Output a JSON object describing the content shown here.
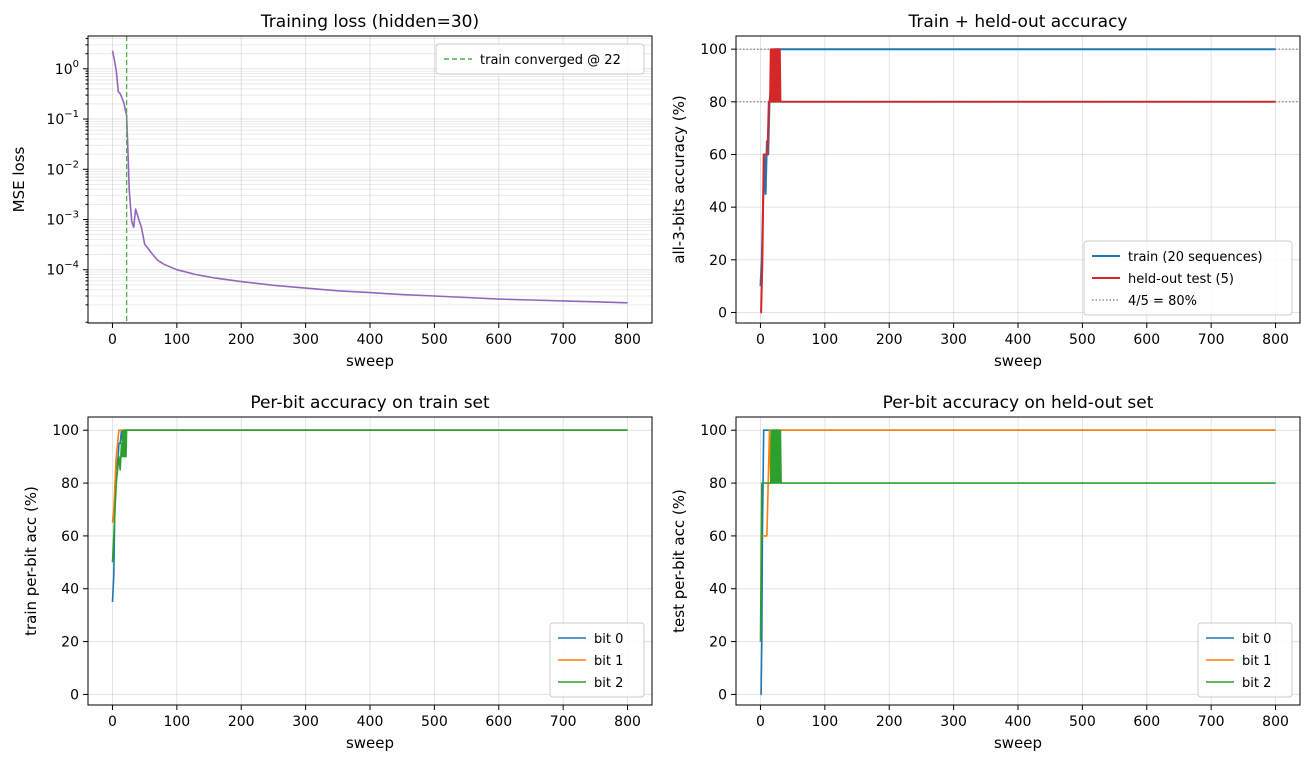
{
  "chart_data": [
    {
      "id": "loss",
      "type": "line",
      "title": "Training loss (hidden=30)",
      "xlabel": "sweep",
      "ylabel": "MSE loss",
      "yscale": "log",
      "xlim": [
        -38,
        838
      ],
      "ylim": [
        8.7e-06,
        4.5
      ],
      "xticks": [
        "0",
        "100",
        "200",
        "300",
        "400",
        "500",
        "600",
        "700",
        "800"
      ],
      "yticks": [
        "10^0",
        "10^-1",
        "10^-2",
        "10^-3",
        "10^-4"
      ],
      "grid": true,
      "legend_position": "top-right",
      "series": [
        {
          "name": "",
          "color": "#9467bd",
          "x": [
            0,
            3,
            6,
            9,
            12,
            15,
            18,
            20,
            22,
            24,
            26,
            28,
            30,
            33,
            36,
            39,
            42,
            45,
            50,
            55,
            60,
            70,
            80,
            100,
            130,
            160,
            200,
            250,
            300,
            350,
            400,
            450,
            500,
            550,
            600,
            650,
            700,
            750,
            800
          ],
          "y": [
            2.3,
            1.5,
            0.9,
            0.35,
            0.32,
            0.26,
            0.2,
            0.15,
            0.12,
            0.025,
            0.004,
            0.0018,
            0.0009,
            0.0007,
            0.0016,
            0.0012,
            0.0009,
            0.0007,
            0.00032,
            0.00027,
            0.00022,
            0.000155,
            0.000128,
            0.0001,
            8e-05,
            6.8e-05,
            5.8e-05,
            4.9e-05,
            4.3e-05,
            3.8e-05,
            3.5e-05,
            3.2e-05,
            3e-05,
            2.8e-05,
            2.6e-05,
            2.5e-05,
            2.4e-05,
            2.3e-05,
            2.2e-05
          ]
        },
        {
          "name": "train converged @ 22",
          "color": "#4daf4a",
          "style": "dashed-vertical",
          "x_value": 22
        }
      ]
    },
    {
      "id": "acc",
      "type": "line",
      "title": "Train + held-out accuracy",
      "xlabel": "sweep",
      "ylabel": "all-3-bits accuracy (%)",
      "xlim": [
        -38,
        838
      ],
      "ylim": [
        -4,
        105
      ],
      "xticks": [
        "0",
        "100",
        "200",
        "300",
        "400",
        "500",
        "600",
        "700",
        "800"
      ],
      "yticks": [
        "0",
        "20",
        "40",
        "60",
        "80",
        "100"
      ],
      "grid": true,
      "legend_position": "lower-right",
      "series": [
        {
          "name": "train (20 sequences)",
          "color": "#1f77b4",
          "x": [
            0,
            2,
            4,
            6,
            8,
            10,
            12,
            14,
            16,
            18,
            20,
            22,
            800
          ],
          "y": [
            10,
            20,
            40,
            60,
            45,
            65,
            60,
            80,
            85,
            90,
            95,
            100,
            100
          ]
        },
        {
          "name": "held-out test (5)",
          "color": "#d62728",
          "x": [
            0,
            1,
            3,
            5,
            7,
            9,
            11,
            13,
            15,
            16,
            17,
            18,
            19,
            20,
            21,
            22,
            23,
            24,
            25,
            26,
            27,
            28,
            29,
            30,
            31,
            32,
            800
          ],
          "y": [
            0,
            0,
            20,
            60,
            60,
            60,
            60,
            80,
            80,
            100,
            80,
            100,
            80,
            100,
            80,
            100,
            80,
            100,
            80,
            100,
            80,
            100,
            80,
            100,
            80,
            80,
            80
          ]
        },
        {
          "name": "4/5 = 80%",
          "color": "#555555",
          "style": "dotted-horizontal",
          "y_value": 80
        }
      ],
      "reference_lines": [
        {
          "y_value": 100,
          "color": "#555555",
          "style": "dotted"
        }
      ]
    },
    {
      "id": "trainbits",
      "type": "line",
      "title": "Per-bit accuracy on train set",
      "xlabel": "sweep",
      "ylabel": "train per-bit acc (%)",
      "xlim": [
        -38,
        838
      ],
      "ylim": [
        -4,
        105
      ],
      "xticks": [
        "0",
        "100",
        "200",
        "300",
        "400",
        "500",
        "600",
        "700",
        "800"
      ],
      "yticks": [
        "0",
        "20",
        "40",
        "60",
        "80",
        "100"
      ],
      "grid": true,
      "legend_position": "lower-right",
      "series": [
        {
          "name": "bit 0",
          "color": "#1f77b4",
          "x": [
            0,
            2,
            4,
            6,
            8,
            10,
            12,
            14,
            16,
            18,
            20,
            800
          ],
          "y": [
            35,
            45,
            75,
            90,
            85,
            95,
            95,
            100,
            95,
            100,
            100,
            100
          ]
        },
        {
          "name": "bit 1",
          "color": "#ff7f0e",
          "x": [
            0,
            2,
            4,
            6,
            8,
            10,
            12,
            800
          ],
          "y": [
            65,
            70,
            80,
            90,
            95,
            100,
            100,
            100
          ]
        },
        {
          "name": "bit 2",
          "color": "#2ca02c",
          "x": [
            0,
            2,
            4,
            6,
            8,
            10,
            12,
            14,
            15,
            16,
            17,
            18,
            19,
            20,
            21,
            22,
            23,
            800
          ],
          "y": [
            50,
            60,
            70,
            80,
            85,
            90,
            85,
            95,
            90,
            100,
            90,
            100,
            90,
            100,
            90,
            100,
            100,
            100
          ]
        }
      ]
    },
    {
      "id": "testbits",
      "type": "line",
      "title": "Per-bit accuracy on held-out set",
      "xlabel": "sweep",
      "ylabel": "test per-bit acc (%)",
      "xlim": [
        -38,
        838
      ],
      "ylim": [
        -4,
        105
      ],
      "xticks": [
        "0",
        "100",
        "200",
        "300",
        "400",
        "500",
        "600",
        "700",
        "800"
      ],
      "yticks": [
        "0",
        "20",
        "40",
        "60",
        "80",
        "100"
      ],
      "grid": true,
      "legend_position": "lower-right",
      "series": [
        {
          "name": "bit 0",
          "color": "#1f77b4",
          "x": [
            0,
            1,
            2,
            3,
            5,
            7,
            9,
            800
          ],
          "y": [
            0,
            0,
            20,
            60,
            100,
            100,
            100,
            100
          ]
        },
        {
          "name": "bit 1",
          "color": "#ff7f0e",
          "x": [
            0,
            2,
            4,
            6,
            8,
            10,
            12,
            14,
            16,
            18,
            20,
            800
          ],
          "y": [
            60,
            60,
            60,
            60,
            60,
            60,
            80,
            100,
            80,
            100,
            100,
            100
          ]
        },
        {
          "name": "bit 2",
          "color": "#2ca02c",
          "x": [
            0,
            2,
            4,
            6,
            8,
            10,
            12,
            14,
            16,
            17,
            18,
            19,
            20,
            21,
            22,
            23,
            24,
            25,
            26,
            27,
            28,
            29,
            30,
            31,
            32,
            800
          ],
          "y": [
            20,
            80,
            80,
            80,
            80,
            80,
            80,
            80,
            80,
            100,
            80,
            100,
            80,
            100,
            80,
            100,
            80,
            100,
            80,
            100,
            80,
            100,
            80,
            100,
            80,
            80
          ]
        }
      ]
    }
  ]
}
